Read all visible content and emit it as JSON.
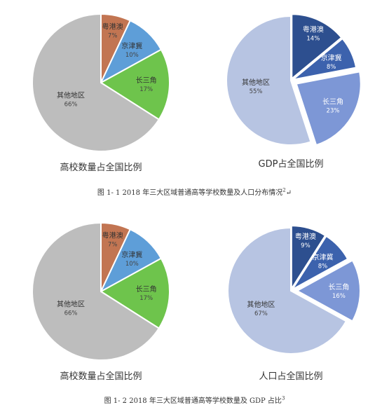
{
  "chart_data": [
    {
      "type": "pie",
      "title": "高校数量占全国比例",
      "slices": [
        {
          "label": "粤港澳",
          "value": 7,
          "display": "7%",
          "color": "#c27552"
        },
        {
          "label": "京津冀",
          "value": 10,
          "display": "10%",
          "color": "#5e9ed8"
        },
        {
          "label": "长三角",
          "value": 17,
          "display": "17%",
          "color": "#6ec44c"
        },
        {
          "label": "其他地区",
          "value": 66,
          "display": "66%",
          "color": "#bdbdbd"
        }
      ]
    },
    {
      "type": "pie",
      "title": "GDP占全国比例",
      "slices": [
        {
          "label": "粤港澳",
          "value": 14,
          "display": "14%",
          "color": "#2d4f8f"
        },
        {
          "label": "京津冀",
          "value": 8,
          "display": "8%",
          "color": "#3c62ad"
        },
        {
          "label": "长三角",
          "value": 23,
          "display": "23%",
          "color": "#7d97d6"
        },
        {
          "label": "其他地区",
          "value": 55,
          "display": "55%",
          "color": "#b7c4e2"
        }
      ]
    },
    {
      "type": "pie",
      "title": "高校数量占全国比例",
      "slices": [
        {
          "label": "粤港澳",
          "value": 7,
          "display": "7%",
          "color": "#c27552"
        },
        {
          "label": "京津冀",
          "value": 10,
          "display": "10%",
          "color": "#5e9ed8"
        },
        {
          "label": "长三角",
          "value": 17,
          "display": "17%",
          "color": "#6ec44c"
        },
        {
          "label": "其他地区",
          "value": 66,
          "display": "66%",
          "color": "#bdbdbd"
        }
      ]
    },
    {
      "type": "pie",
      "title": "人口占全国比例",
      "slices": [
        {
          "label": "粤港澳",
          "value": 9,
          "display": "9%",
          "color": "#2d4f8f"
        },
        {
          "label": "京津冀",
          "value": 8,
          "display": "8%",
          "color": "#3c62ad"
        },
        {
          "label": "长三角",
          "value": 16,
          "display": "16%",
          "color": "#7d97d6"
        },
        {
          "label": "其他地区",
          "value": 67,
          "display": "67%",
          "color": "#b7c4e2"
        }
      ]
    }
  ],
  "captions": {
    "fig1": "图 1- 1 2018 年三大区域普通高等学校数量及人口分布情况",
    "fig1_sup": "2",
    "fig2": "图 1- 2 2018 年三大区域普通高等学校数量及 GDP 占比",
    "fig2_sup": "3",
    "para_mark": "↵"
  }
}
